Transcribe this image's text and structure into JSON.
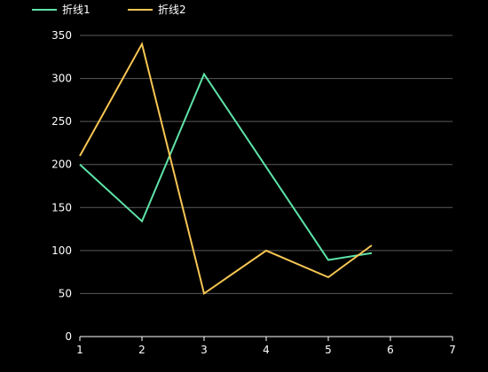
{
  "chart_data": {
    "type": "line",
    "x_ticks": [
      1,
      2,
      3,
      4,
      5,
      6,
      7
    ],
    "y_ticks": [
      0,
      50,
      100,
      150,
      200,
      250,
      300,
      350
    ],
    "xlim": [
      1,
      7
    ],
    "ylim": [
      0,
      350
    ],
    "grid": "horizontal",
    "legend_position": "top-left",
    "series": [
      {
        "name": "折线1",
        "color": "#5ee3a8",
        "x": [
          1,
          2,
          3,
          4,
          5,
          5.7
        ],
        "y": [
          200,
          134,
          305,
          197,
          89,
          97
        ]
      },
      {
        "name": "折线2",
        "color": "#f7c653",
        "x": [
          1,
          2,
          3,
          4,
          5,
          5.7
        ],
        "y": [
          210,
          340,
          50,
          100,
          69,
          106
        ]
      }
    ]
  }
}
